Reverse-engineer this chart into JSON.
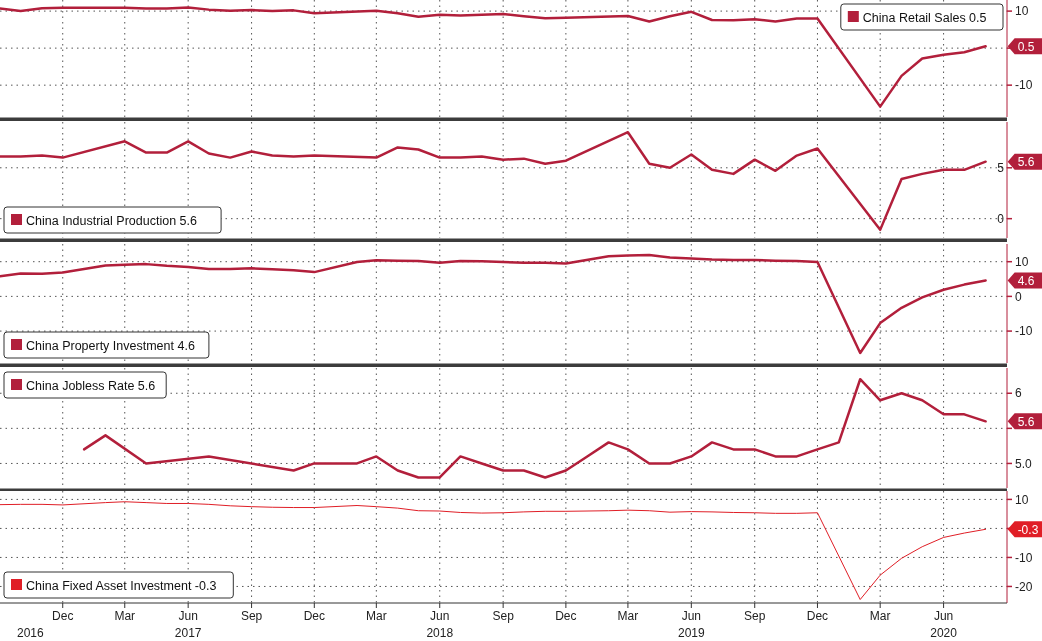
{
  "chart_data": [
    {
      "type": "line",
      "xlim": [
        "2016-09",
        "2020-09"
      ],
      "ylim": [
        -18.6,
        13.0
      ],
      "yticks": [
        10,
        {
          "value": 0,
          "label": null
        },
        -10
      ],
      "grid": true,
      "legend": "top right",
      "tick_labels": "y",
      "xticks": [
        {
          "value": "2016-12",
          "label": null
        },
        {
          "value": "2017-03",
          "label": null
        },
        {
          "value": "2017-06",
          "label": null
        },
        {
          "value": "2017-09",
          "label": null
        },
        {
          "value": "2017-12",
          "label": null
        },
        {
          "value": "2018-03",
          "label": null
        },
        {
          "value": "2018-06",
          "label": null
        },
        {
          "value": "2018-09",
          "label": null
        },
        {
          "value": "2018-12",
          "label": null
        },
        {
          "value": "2019-03",
          "label": null
        },
        {
          "value": "2019-06",
          "label": null
        },
        {
          "value": "2019-09",
          "label": null
        },
        {
          "value": "2019-12",
          "label": null
        },
        {
          "value": "2020-03",
          "label": null
        },
        {
          "value": "2020-06",
          "label": null
        }
      ],
      "series": [
        {
          "name": "China Retail Sales 0.5",
          "color": "#b21f3b",
          "x": [
            "2016-09",
            "2016-10",
            "2016-11",
            "2016-12",
            "2017-03",
            "2017-04",
            "2017-05",
            "2017-06",
            "2017-07",
            "2017-08",
            "2017-09",
            "2017-10",
            "2017-11",
            "2017-12",
            "2018-03",
            "2018-04",
            "2018-05",
            "2018-06",
            "2018-07",
            "2018-08",
            "2018-09",
            "2018-10",
            "2018-11",
            "2018-12",
            "2019-03",
            "2019-04",
            "2019-05",
            "2019-06",
            "2019-07",
            "2019-08",
            "2019-09",
            "2019-10",
            "2019-11",
            "2019-12",
            "2020-03",
            "2020-04",
            "2020-05",
            "2020-06",
            "2020-07",
            "2020-08"
          ],
          "values": [
            10.7,
            10.0,
            10.8,
            10.9,
            10.9,
            10.7,
            10.7,
            11.0,
            10.4,
            10.1,
            10.3,
            10.0,
            10.2,
            9.4,
            10.1,
            9.4,
            8.5,
            9.0,
            8.8,
            9.0,
            9.2,
            8.6,
            8.1,
            8.2,
            8.7,
            7.2,
            8.6,
            9.8,
            7.6,
            7.5,
            7.8,
            7.2,
            8.0,
            8.0,
            -15.8,
            -7.5,
            -2.8,
            -1.8,
            -1.1,
            0.5
          ]
        }
      ],
      "annotations": [
        {
          "text": "0.5",
          "x": "2020-08",
          "y": 0.5
        }
      ]
    },
    {
      "type": "line",
      "xlim": [
        "2016-09",
        "2020-09"
      ],
      "ylim": [
        -1.9,
        9.5
      ],
      "yticks": [
        5,
        0
      ],
      "grid": true,
      "legend": "bottom left",
      "tick_labels": "y",
      "xticks": [
        {
          "value": "2016-12",
          "label": null
        },
        {
          "value": "2017-03",
          "label": null
        },
        {
          "value": "2017-06",
          "label": null
        },
        {
          "value": "2017-09",
          "label": null
        },
        {
          "value": "2017-12",
          "label": null
        },
        {
          "value": "2018-03",
          "label": null
        },
        {
          "value": "2018-06",
          "label": null
        },
        {
          "value": "2018-09",
          "label": null
        },
        {
          "value": "2018-12",
          "label": null
        },
        {
          "value": "2019-03",
          "label": null
        },
        {
          "value": "2019-06",
          "label": null
        },
        {
          "value": "2019-09",
          "label": null
        },
        {
          "value": "2019-12",
          "label": null
        },
        {
          "value": "2020-03",
          "label": null
        },
        {
          "value": "2020-06",
          "label": null
        }
      ],
      "series": [
        {
          "name": "China Industrial Production 5.6",
          "color": "#b21f3b",
          "x": [
            "2016-09",
            "2016-10",
            "2016-11",
            "2016-12",
            "2017-03",
            "2017-04",
            "2017-05",
            "2017-06",
            "2017-07",
            "2017-08",
            "2017-09",
            "2017-10",
            "2017-11",
            "2017-12",
            "2018-03",
            "2018-04",
            "2018-05",
            "2018-06",
            "2018-07",
            "2018-08",
            "2018-09",
            "2018-10",
            "2018-11",
            "2018-12",
            "2019-03",
            "2019-04",
            "2019-05",
            "2019-06",
            "2019-07",
            "2019-08",
            "2019-09",
            "2019-10",
            "2019-11",
            "2019-12",
            "2020-03",
            "2020-04",
            "2020-05",
            "2020-06",
            "2020-07",
            "2020-08"
          ],
          "values": [
            6.1,
            6.1,
            6.2,
            6.0,
            7.6,
            6.5,
            6.5,
            7.6,
            6.4,
            6.0,
            6.6,
            6.2,
            6.1,
            6.2,
            6.0,
            7.0,
            6.8,
            6.0,
            6.0,
            6.1,
            5.8,
            5.9,
            5.4,
            5.7,
            8.5,
            5.4,
            5.0,
            6.3,
            4.8,
            4.4,
            5.8,
            4.7,
            6.2,
            6.9,
            -1.1,
            3.9,
            4.4,
            4.8,
            4.8,
            5.6
          ]
        }
      ],
      "annotations": [
        {
          "text": "5.6",
          "x": "2020-08",
          "y": 5.6
        }
      ]
    },
    {
      "type": "line",
      "xlim": [
        "2016-09",
        "2020-09"
      ],
      "ylim": [
        -19.2,
        15.1
      ],
      "yticks": [
        10,
        0,
        -10
      ],
      "grid": true,
      "legend": "bottom left",
      "tick_labels": "y",
      "xticks": [
        {
          "value": "2016-12",
          "label": null
        },
        {
          "value": "2017-03",
          "label": null
        },
        {
          "value": "2017-06",
          "label": null
        },
        {
          "value": "2017-09",
          "label": null
        },
        {
          "value": "2017-12",
          "label": null
        },
        {
          "value": "2018-03",
          "label": null
        },
        {
          "value": "2018-06",
          "label": null
        },
        {
          "value": "2018-09",
          "label": null
        },
        {
          "value": "2018-12",
          "label": null
        },
        {
          "value": "2019-03",
          "label": null
        },
        {
          "value": "2019-06",
          "label": null
        },
        {
          "value": "2019-09",
          "label": null
        },
        {
          "value": "2019-12",
          "label": null
        },
        {
          "value": "2020-03",
          "label": null
        },
        {
          "value": "2020-06",
          "label": null
        }
      ],
      "series": [
        {
          "name": "China Property Investment 4.6",
          "color": "#b21f3b",
          "x": [
            "2016-09",
            "2016-10",
            "2016-11",
            "2016-12",
            "2017-02",
            "2017-03",
            "2017-04",
            "2017-05",
            "2017-06",
            "2017-07",
            "2017-08",
            "2017-09",
            "2017-10",
            "2017-11",
            "2017-12",
            "2018-02",
            "2018-03",
            "2018-04",
            "2018-05",
            "2018-06",
            "2018-07",
            "2018-08",
            "2018-09",
            "2018-10",
            "2018-11",
            "2018-12",
            "2019-02",
            "2019-03",
            "2019-04",
            "2019-05",
            "2019-06",
            "2019-07",
            "2019-08",
            "2019-09",
            "2019-10",
            "2019-11",
            "2019-12",
            "2020-02",
            "2020-03",
            "2020-04",
            "2020-05",
            "2020-06",
            "2020-07",
            "2020-08"
          ],
          "values": [
            5.8,
            6.6,
            6.5,
            6.9,
            8.9,
            9.1,
            9.3,
            8.8,
            8.5,
            7.9,
            7.9,
            8.1,
            7.8,
            7.5,
            7.0,
            9.9,
            10.4,
            10.3,
            10.2,
            9.7,
            10.2,
            10.1,
            9.9,
            9.7,
            9.7,
            9.5,
            11.6,
            11.8,
            11.9,
            11.2,
            10.9,
            10.6,
            10.5,
            10.5,
            10.3,
            10.2,
            9.9,
            -16.3,
            -7.7,
            -3.3,
            -0.3,
            1.9,
            3.4,
            4.6
          ]
        }
      ],
      "annotations": [
        {
          "text": "4.6",
          "x": "2020-08",
          "y": 4.6
        }
      ]
    },
    {
      "type": "line",
      "xlim": [
        "2016-09",
        "2020-09"
      ],
      "ylim": [
        4.65,
        6.36
      ],
      "yticks": [
        6.0,
        {
          "value": 5.5,
          "label": null
        },
        {
          "value": 5.0,
          "label": "5.0"
        }
      ],
      "grid": true,
      "legend": "top left",
      "tick_labels": "y",
      "xticks": [
        {
          "value": "2016-12",
          "label": null
        },
        {
          "value": "2017-03",
          "label": null
        },
        {
          "value": "2017-06",
          "label": null
        },
        {
          "value": "2017-09",
          "label": null
        },
        {
          "value": "2017-12",
          "label": null
        },
        {
          "value": "2018-03",
          "label": null
        },
        {
          "value": "2018-06",
          "label": null
        },
        {
          "value": "2018-09",
          "label": null
        },
        {
          "value": "2018-12",
          "label": null
        },
        {
          "value": "2019-03",
          "label": null
        },
        {
          "value": "2019-06",
          "label": null
        },
        {
          "value": "2019-09",
          "label": null
        },
        {
          "value": "2019-12",
          "label": null
        },
        {
          "value": "2020-03",
          "label": null
        },
        {
          "value": "2020-06",
          "label": null
        }
      ],
      "series": [
        {
          "name": "China Jobless Rate 5.6",
          "color": "#b21f3b",
          "x": [
            "2017-01",
            "2017-02",
            "2017-04",
            "2017-07",
            "2017-11",
            "2017-12",
            "2018-01",
            "2018-02",
            "2018-03",
            "2018-04",
            "2018-05",
            "2018-06",
            "2018-07",
            "2018-08",
            "2018-09",
            "2018-10",
            "2018-11",
            "2018-12",
            "2019-01",
            "2019-02",
            "2019-03",
            "2019-04",
            "2019-05",
            "2019-06",
            "2019-07",
            "2019-08",
            "2019-09",
            "2019-10",
            "2019-11",
            "2019-12",
            "2020-01",
            "2020-02",
            "2020-03",
            "2020-04",
            "2020-05",
            "2020-06",
            "2020-07",
            "2020-08"
          ],
          "values": [
            5.2,
            5.4,
            5.0,
            5.1,
            4.9,
            5.0,
            5.0,
            5.0,
            5.1,
            4.9,
            4.8,
            4.8,
            5.1,
            5.0,
            4.9,
            4.9,
            4.8,
            4.9,
            5.1,
            5.3,
            5.2,
            5.0,
            5.0,
            5.1,
            5.3,
            5.2,
            5.2,
            5.1,
            5.1,
            5.2,
            5.3,
            6.2,
            5.9,
            6.0,
            5.9,
            5.7,
            5.7,
            5.6
          ]
        }
      ],
      "annotations": [
        {
          "text": "5.6",
          "x": "2020-08",
          "y": 5.6
        }
      ]
    },
    {
      "type": "line",
      "xlim": [
        "2016-09",
        "2020-09"
      ],
      "ylim": [
        -25.7,
        12.9
      ],
      "yticks": [
        10,
        {
          "value": 0,
          "label": null
        },
        -10,
        -20
      ],
      "grid": true,
      "legend": "bottom left",
      "xticks": [
        {
          "value": "2016-12",
          "label": "Dec"
        },
        {
          "value": "2017-03",
          "label": "Mar"
        },
        {
          "value": "2017-06",
          "label": "Jun"
        },
        {
          "value": "2017-09",
          "label": "Sep"
        },
        {
          "value": "2017-12",
          "label": "Dec"
        },
        {
          "value": "2018-03",
          "label": "Mar"
        },
        {
          "value": "2018-06",
          "label": "Jun"
        },
        {
          "value": "2018-09",
          "label": "Sep"
        },
        {
          "value": "2018-12",
          "label": "Dec"
        },
        {
          "value": "2019-03",
          "label": "Mar"
        },
        {
          "value": "2019-06",
          "label": "Jun"
        },
        {
          "value": "2019-09",
          "label": "Sep"
        },
        {
          "value": "2019-12",
          "label": "Dec"
        },
        {
          "value": "2020-03",
          "label": "Mar"
        },
        {
          "value": "2020-06",
          "label": "Jun"
        }
      ],
      "x2lim": [
        "2016-09",
        "2020-09"
      ],
      "x2ticks": [
        {
          "value": "2016-10-15",
          "label": "2016"
        },
        {
          "value": "2017-06",
          "label": "2017"
        },
        {
          "value": "2018-06",
          "label": "2018"
        },
        {
          "value": "2019-06",
          "label": "2019"
        },
        {
          "value": "2020-06",
          "label": "2020"
        }
      ],
      "series": [
        {
          "name": "China Fixed Asset Investment -0.3",
          "color": "#e01e26",
          "x": [
            "2016-09",
            "2016-10",
            "2016-11",
            "2016-12",
            "2017-02",
            "2017-03",
            "2017-04",
            "2017-05",
            "2017-06",
            "2017-07",
            "2017-08",
            "2017-09",
            "2017-10",
            "2017-11",
            "2017-12",
            "2018-02",
            "2018-03",
            "2018-04",
            "2018-05",
            "2018-06",
            "2018-07",
            "2018-08",
            "2018-09",
            "2018-10",
            "2018-11",
            "2018-12",
            "2019-02",
            "2019-03",
            "2019-04",
            "2019-05",
            "2019-06",
            "2019-07",
            "2019-08",
            "2019-09",
            "2019-10",
            "2019-11",
            "2019-12",
            "2020-02",
            "2020-03",
            "2020-04",
            "2020-05",
            "2020-06",
            "2020-07",
            "2020-08"
          ],
          "values": [
            8.2,
            8.3,
            8.3,
            8.1,
            8.9,
            9.2,
            8.9,
            8.6,
            8.6,
            8.3,
            7.8,
            7.5,
            7.3,
            7.2,
            7.2,
            7.9,
            7.5,
            7.0,
            6.1,
            6.0,
            5.5,
            5.3,
            5.4,
            5.7,
            5.9,
            5.9,
            6.1,
            6.3,
            6.1,
            5.6,
            5.8,
            5.7,
            5.5,
            5.4,
            5.2,
            5.2,
            5.4,
            -24.5,
            -16.1,
            -10.3,
            -6.3,
            -3.1,
            -1.6,
            -0.3
          ]
        }
      ],
      "annotations": [
        {
          "text": "-0.3",
          "x": "2020-08",
          "y": -0.3
        }
      ]
    }
  ]
}
